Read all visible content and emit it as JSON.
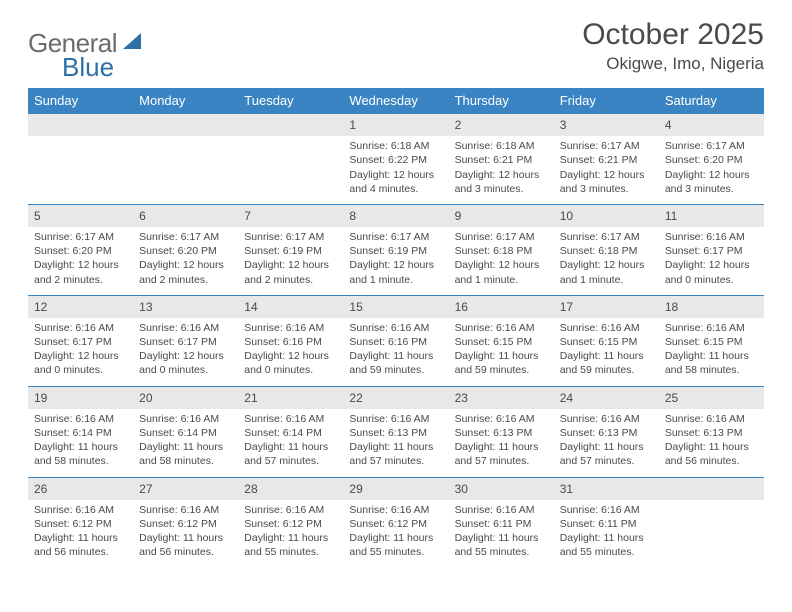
{
  "logo": {
    "text1": "General",
    "text2": "Blue"
  },
  "title": "October 2025",
  "location": "Okigwe, Imo, Nigeria",
  "colors": {
    "header_bg": "#3b84c4",
    "header_text": "#ffffff",
    "daynum_bg": "#e8e8e8",
    "border": "#3b84c4",
    "body_text": "#4a4a4a",
    "logo_blue": "#2f6fa8"
  },
  "day_headers": [
    "Sunday",
    "Monday",
    "Tuesday",
    "Wednesday",
    "Thursday",
    "Friday",
    "Saturday"
  ],
  "weeks": [
    [
      {
        "empty": true
      },
      {
        "empty": true
      },
      {
        "empty": true
      },
      {
        "num": "1",
        "sunrise": "6:18 AM",
        "sunset": "6:22 PM",
        "daylight": "12 hours and 4 minutes."
      },
      {
        "num": "2",
        "sunrise": "6:18 AM",
        "sunset": "6:21 PM",
        "daylight": "12 hours and 3 minutes."
      },
      {
        "num": "3",
        "sunrise": "6:17 AM",
        "sunset": "6:21 PM",
        "daylight": "12 hours and 3 minutes."
      },
      {
        "num": "4",
        "sunrise": "6:17 AM",
        "sunset": "6:20 PM",
        "daylight": "12 hours and 3 minutes."
      }
    ],
    [
      {
        "num": "5",
        "sunrise": "6:17 AM",
        "sunset": "6:20 PM",
        "daylight": "12 hours and 2 minutes."
      },
      {
        "num": "6",
        "sunrise": "6:17 AM",
        "sunset": "6:20 PM",
        "daylight": "12 hours and 2 minutes."
      },
      {
        "num": "7",
        "sunrise": "6:17 AM",
        "sunset": "6:19 PM",
        "daylight": "12 hours and 2 minutes."
      },
      {
        "num": "8",
        "sunrise": "6:17 AM",
        "sunset": "6:19 PM",
        "daylight": "12 hours and 1 minute."
      },
      {
        "num": "9",
        "sunrise": "6:17 AM",
        "sunset": "6:18 PM",
        "daylight": "12 hours and 1 minute."
      },
      {
        "num": "10",
        "sunrise": "6:17 AM",
        "sunset": "6:18 PM",
        "daylight": "12 hours and 1 minute."
      },
      {
        "num": "11",
        "sunrise": "6:16 AM",
        "sunset": "6:17 PM",
        "daylight": "12 hours and 0 minutes."
      }
    ],
    [
      {
        "num": "12",
        "sunrise": "6:16 AM",
        "sunset": "6:17 PM",
        "daylight": "12 hours and 0 minutes."
      },
      {
        "num": "13",
        "sunrise": "6:16 AM",
        "sunset": "6:17 PM",
        "daylight": "12 hours and 0 minutes."
      },
      {
        "num": "14",
        "sunrise": "6:16 AM",
        "sunset": "6:16 PM",
        "daylight": "12 hours and 0 minutes."
      },
      {
        "num": "15",
        "sunrise": "6:16 AM",
        "sunset": "6:16 PM",
        "daylight": "11 hours and 59 minutes."
      },
      {
        "num": "16",
        "sunrise": "6:16 AM",
        "sunset": "6:15 PM",
        "daylight": "11 hours and 59 minutes."
      },
      {
        "num": "17",
        "sunrise": "6:16 AM",
        "sunset": "6:15 PM",
        "daylight": "11 hours and 59 minutes."
      },
      {
        "num": "18",
        "sunrise": "6:16 AM",
        "sunset": "6:15 PM",
        "daylight": "11 hours and 58 minutes."
      }
    ],
    [
      {
        "num": "19",
        "sunrise": "6:16 AM",
        "sunset": "6:14 PM",
        "daylight": "11 hours and 58 minutes."
      },
      {
        "num": "20",
        "sunrise": "6:16 AM",
        "sunset": "6:14 PM",
        "daylight": "11 hours and 58 minutes."
      },
      {
        "num": "21",
        "sunrise": "6:16 AM",
        "sunset": "6:14 PM",
        "daylight": "11 hours and 57 minutes."
      },
      {
        "num": "22",
        "sunrise": "6:16 AM",
        "sunset": "6:13 PM",
        "daylight": "11 hours and 57 minutes."
      },
      {
        "num": "23",
        "sunrise": "6:16 AM",
        "sunset": "6:13 PM",
        "daylight": "11 hours and 57 minutes."
      },
      {
        "num": "24",
        "sunrise": "6:16 AM",
        "sunset": "6:13 PM",
        "daylight": "11 hours and 57 minutes."
      },
      {
        "num": "25",
        "sunrise": "6:16 AM",
        "sunset": "6:13 PM",
        "daylight": "11 hours and 56 minutes."
      }
    ],
    [
      {
        "num": "26",
        "sunrise": "6:16 AM",
        "sunset": "6:12 PM",
        "daylight": "11 hours and 56 minutes."
      },
      {
        "num": "27",
        "sunrise": "6:16 AM",
        "sunset": "6:12 PM",
        "daylight": "11 hours and 56 minutes."
      },
      {
        "num": "28",
        "sunrise": "6:16 AM",
        "sunset": "6:12 PM",
        "daylight": "11 hours and 55 minutes."
      },
      {
        "num": "29",
        "sunrise": "6:16 AM",
        "sunset": "6:12 PM",
        "daylight": "11 hours and 55 minutes."
      },
      {
        "num": "30",
        "sunrise": "6:16 AM",
        "sunset": "6:11 PM",
        "daylight": "11 hours and 55 minutes."
      },
      {
        "num": "31",
        "sunrise": "6:16 AM",
        "sunset": "6:11 PM",
        "daylight": "11 hours and 55 minutes."
      },
      {
        "empty": true
      }
    ]
  ],
  "labels": {
    "sunrise": "Sunrise: ",
    "sunset": "Sunset: ",
    "daylight": "Daylight: "
  }
}
